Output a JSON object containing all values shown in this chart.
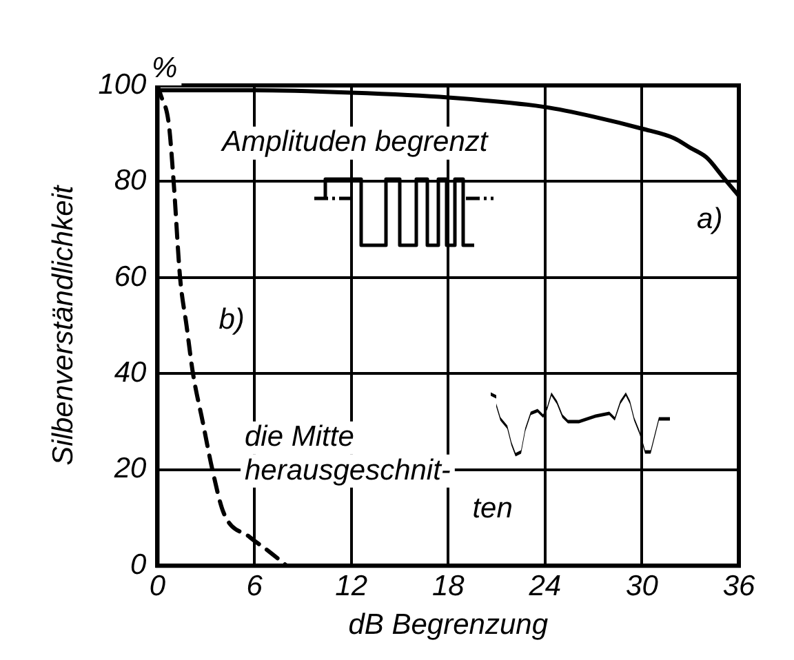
{
  "chart_data": {
    "type": "line",
    "xlabel": "dB Begrenzung",
    "ylabel": "Silbenverständlichkeit",
    "annotations": [
      "%",
      "Amplituden begrenzt",
      "die Mitte\nherausgeschnit-\nten"
    ],
    "xlim": [
      0,
      36
    ],
    "xticks": [
      0,
      6,
      12,
      18,
      24,
      30,
      36
    ],
    "ylim": [
      0,
      100
    ],
    "yticks": [
      0,
      20,
      40,
      60,
      80,
      100
    ],
    "grid": true,
    "legend": false,
    "marker": "none",
    "series": [
      {
        "name": "a)",
        "color": "#000000",
        "line_style": "solid",
        "x": [
          0,
          6,
          12,
          18,
          24,
          27,
          30,
          32,
          33,
          34,
          35,
          36
        ],
        "values": [
          99,
          99,
          98.5,
          97.5,
          95.5,
          93.5,
          91,
          89,
          87,
          85,
          81,
          77
        ]
      },
      {
        "name": "b)",
        "color": "#000000",
        "line_style": "dashed",
        "x": [
          0,
          0.2,
          0.7,
          1.0,
          1.4,
          1.8,
          2.2,
          2.8,
          3.4,
          4.1,
          5.7,
          6.9,
          8.0
        ],
        "values": [
          100,
          98,
          92,
          80,
          60,
          50,
          40,
          30,
          20,
          11,
          6,
          3,
          0
        ]
      }
    ]
  }
}
